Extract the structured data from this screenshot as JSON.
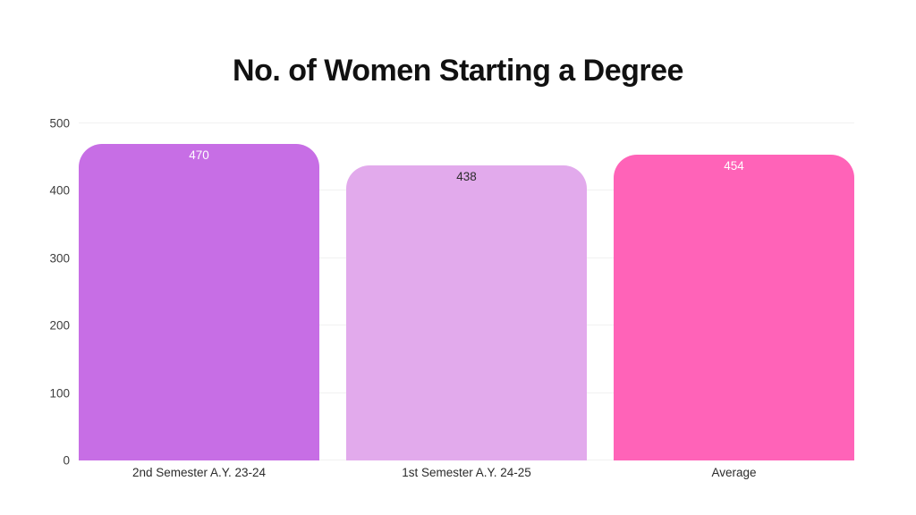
{
  "chart_data": {
    "type": "bar",
    "title": "No. of Women Starting a Degree",
    "categories": [
      "2nd Semester A.Y. 23-24",
      "1st Semester A.Y. 24-25",
      "Average"
    ],
    "values": [
      470,
      438,
      454
    ],
    "bar_colors": [
      "#c76ee5",
      "#e2aaec",
      "#ff63b8"
    ],
    "value_label_colors": [
      "#ffffff",
      "#2b2b2b",
      "#ffffff"
    ],
    "xlabel": "",
    "ylabel": "",
    "ylim": [
      0,
      500
    ],
    "yticks": [
      0,
      100,
      200,
      300,
      400,
      500
    ],
    "grid": "horizontal",
    "gridline_color": "#f1f1f1",
    "legend": "none",
    "background": "#ffffff"
  }
}
